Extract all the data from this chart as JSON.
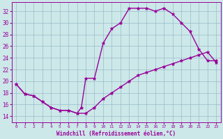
{
  "xlabel": "Windchill (Refroidissement éolien,°C)",
  "background_color": "#cce8e8",
  "line_color": "#990099",
  "xlim": [
    -0.5,
    23.5
  ],
  "ylim": [
    13.0,
    33.5
  ],
  "yticks": [
    14,
    16,
    18,
    20,
    22,
    24,
    26,
    28,
    30,
    32
  ],
  "xticks": [
    0,
    1,
    2,
    3,
    4,
    5,
    6,
    7,
    8,
    9,
    10,
    11,
    12,
    13,
    14,
    15,
    16,
    17,
    18,
    19,
    20,
    21,
    22,
    23
  ],
  "curve1_x": [
    0,
    1,
    2,
    3,
    4,
    5,
    6,
    7,
    7.5,
    8,
    9,
    10,
    11,
    12,
    13,
    14,
    15,
    16,
    17,
    18,
    19,
    20,
    21,
    22,
    23
  ],
  "curve1_y": [
    19.5,
    17.8,
    17.5,
    16.5,
    15.5,
    15.0,
    15.0,
    14.5,
    15.5,
    20.5,
    20.5,
    26.5,
    29.0,
    30.0,
    32.5,
    32.5,
    32.5,
    32.0,
    32.5,
    31.5,
    30.0,
    28.5,
    25.5,
    23.5,
    23.5
  ],
  "curve2_x": [
    0,
    1,
    2,
    3,
    4,
    5,
    6,
    7,
    8,
    9,
    10,
    11,
    12,
    13,
    14,
    15,
    16,
    17,
    18,
    19,
    20,
    21,
    22,
    23
  ],
  "curve2_y": [
    19.5,
    17.8,
    17.5,
    16.5,
    15.5,
    15.0,
    15.0,
    14.5,
    14.5,
    15.5,
    17.0,
    18.0,
    19.0,
    20.0,
    21.0,
    21.5,
    22.0,
    22.5,
    23.0,
    23.5,
    24.0,
    24.5,
    25.0,
    23.2
  ],
  "grid_color": "#99bbcc",
  "marker": "*",
  "markersize": 3.5,
  "linewidth": 1.0
}
